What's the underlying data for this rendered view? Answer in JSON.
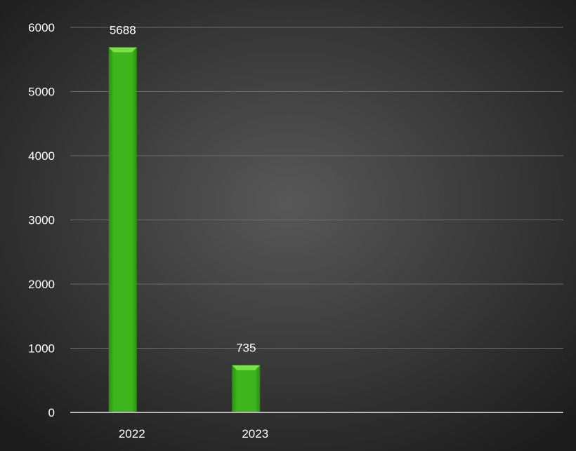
{
  "chart_data": {
    "type": "bar",
    "categories": [
      "2022",
      "2023"
    ],
    "values": [
      5688,
      735
    ],
    "data_labels": [
      "5688",
      "735"
    ],
    "title": "",
    "xlabel": "",
    "ylabel": "",
    "ylim": [
      0,
      6000
    ],
    "y_ticks": [
      {
        "value": 0,
        "label": "0"
      },
      {
        "value": 1000,
        "label": "1000"
      },
      {
        "value": 2000,
        "label": "2000"
      },
      {
        "value": 3000,
        "label": "3000"
      },
      {
        "value": 4000,
        "label": "4000"
      },
      {
        "value": 5000,
        "label": "5000"
      },
      {
        "value": 6000,
        "label": "6000"
      }
    ],
    "x_slots": 4,
    "grid": true,
    "legend": "none",
    "colors": {
      "background_center": "#585858",
      "background_edge": "#1c1c1c",
      "bar_light": "#7be04a",
      "bar_main": "#3db51c",
      "bar_dark": "#2b8f12",
      "grid": "#6a6a6a",
      "baseline": "#b8b8b8",
      "text": "#ffffff"
    }
  }
}
